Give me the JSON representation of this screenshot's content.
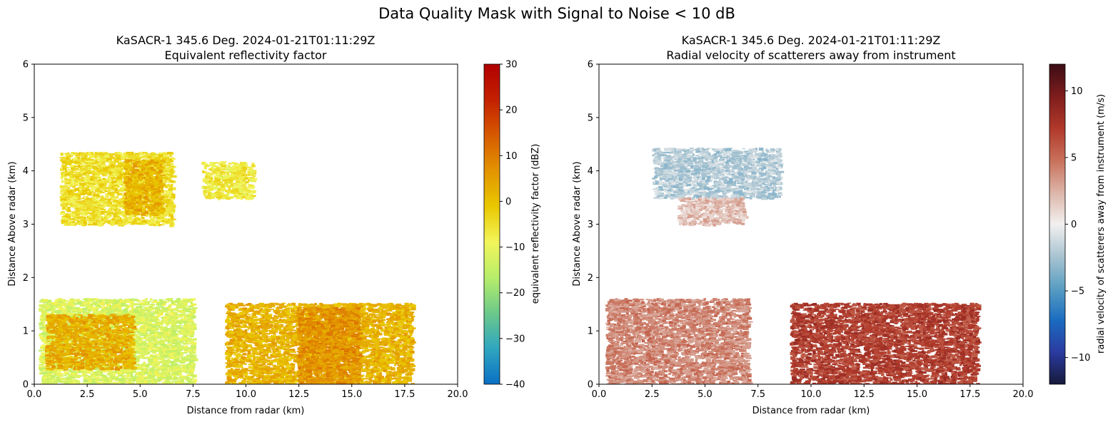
{
  "figure_title": "Data Quality Mask with Signal to Noise < 10 dB",
  "chart_data": [
    {
      "type": "heatmap",
      "title_line1": "KaSACR-1 345.6 Deg. 2024-01-21T01:11:29Z",
      "title_line2": "Equivalent reflectivity factor",
      "xlabel": "Distance from radar (km)",
      "ylabel": "Distance Above radar  (km)",
      "xlim": [
        0,
        20
      ],
      "ylim": [
        0,
        6
      ],
      "xticks": [
        "0.0",
        "2.5",
        "5.0",
        "7.5",
        "10.0",
        "12.5",
        "15.0",
        "17.5",
        "20.0"
      ],
      "yticks": [
        "0",
        "1",
        "2",
        "3",
        "4",
        "5",
        "6"
      ],
      "colorbar": {
        "label": "equivalent reflectivity factor (dBZ)",
        "range": [
          -40,
          30
        ],
        "ticks": [
          "30",
          "20",
          "10",
          "0",
          "−10",
          "−20",
          "−30",
          "−40"
        ],
        "colors": [
          "#0a6fc4",
          "#2fa6c0",
          "#6cc98a",
          "#b7ee6a",
          "#f2f55a",
          "#e9c800",
          "#e39400",
          "#d65a00",
          "#c42000",
          "#b00000"
        ]
      },
      "regions": [
        {
          "name": "upper cloud",
          "x": [
            1.2,
            6.5
          ],
          "y": [
            3.0,
            4.6
          ],
          "value_dBZ": -5
        },
        {
          "name": "upper cloud core",
          "x": [
            4.2,
            6.0
          ],
          "y": [
            3.2,
            4.4
          ],
          "value_dBZ": 2
        },
        {
          "name": "small upper patches",
          "x": [
            7.9,
            10.3
          ],
          "y": [
            3.5,
            4.3
          ],
          "value_dBZ": -7
        },
        {
          "name": "low-level clutter",
          "x": [
            0.2,
            7.5
          ],
          "y": [
            0.0,
            1.9
          ],
          "value_dBZ": -12
        },
        {
          "name": "low-level core",
          "x": [
            0.5,
            4.6
          ],
          "y": [
            0.3,
            1.5
          ],
          "value_dBZ": 3
        },
        {
          "name": "lower precipitation",
          "x": [
            9.0,
            17.8
          ],
          "y": [
            0.0,
            1.8
          ],
          "value_dBZ": 2
        },
        {
          "name": "precipitation core",
          "x": [
            12.4,
            15.3
          ],
          "y": [
            0.0,
            1.7
          ],
          "value_dBZ": 7
        }
      ]
    },
    {
      "type": "heatmap",
      "title_line1": "KaSACR-1 345.6 Deg. 2024-01-21T01:11:29Z",
      "title_line2": "Radial velocity of scatterers away from instrument",
      "xlabel": "Distance from radar (km)",
      "ylabel": "Distance Above radar  (km)",
      "xlim": [
        0,
        20
      ],
      "ylim": [
        0,
        6
      ],
      "xticks": [
        "0.0",
        "2.5",
        "5.0",
        "7.5",
        "10.0",
        "12.5",
        "15.0",
        "17.5",
        "20.0"
      ],
      "yticks": [
        "0",
        "1",
        "2",
        "3",
        "4",
        "5",
        "6"
      ],
      "colorbar": {
        "label": "radial velocity of scatterers away from instrument (m/s)",
        "range": [
          -12,
          12
        ],
        "ticks": [
          "10",
          "5",
          "0",
          "−5",
          "−10"
        ],
        "colors": [
          "#161a3a",
          "#2b3aa0",
          "#1a6cc0",
          "#5a9ec2",
          "#a9c4d1",
          "#f2f0ef",
          "#dcb4a8",
          "#c8705a",
          "#b0392a",
          "#7e1d1d",
          "#3b0d14"
        ]
      },
      "regions": [
        {
          "name": "upper cloud",
          "x": [
            2.5,
            8.5
          ],
          "y": [
            3.5,
            4.6
          ],
          "value_ms": -2
        },
        {
          "name": "upper cloud base",
          "x": [
            3.7,
            6.8
          ],
          "y": [
            3.0,
            3.6
          ],
          "value_ms": 2
        },
        {
          "name": "low-level clutter",
          "x": [
            0.3,
            7.0
          ],
          "y": [
            0.0,
            1.9
          ],
          "value_ms": 4
        },
        {
          "name": "lower precipitation",
          "x": [
            9.0,
            17.8
          ],
          "y": [
            0.0,
            1.8
          ],
          "value_ms": 7
        }
      ]
    }
  ]
}
